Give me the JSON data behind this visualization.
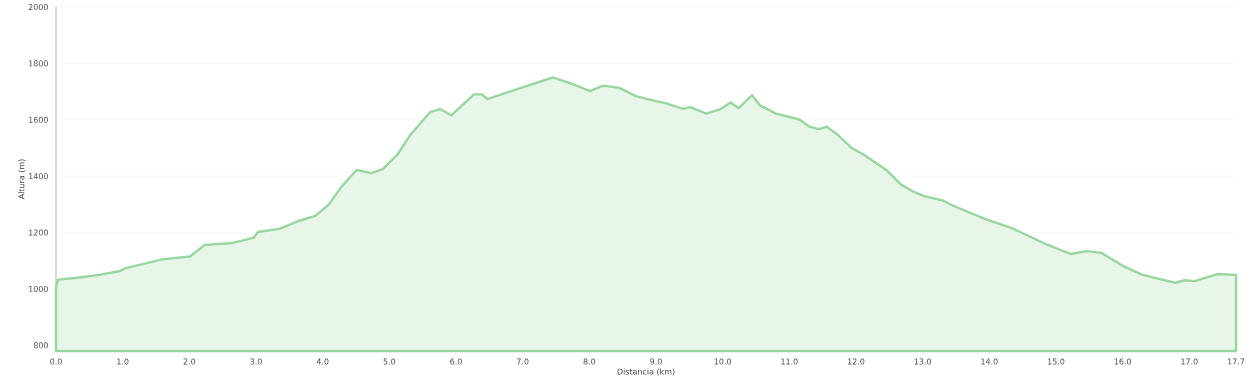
{
  "chart_data": {
    "type": "area",
    "xlabel": "Distancia   (km)",
    "ylabel": "Altura (m)",
    "x": [
      0,
      0.03,
      0.29,
      0.65,
      0.95,
      1.05,
      1.44,
      1.59,
      2.01,
      2.23,
      2.4,
      2.62,
      2.96,
      3.03,
      3.35,
      3.65,
      3.89,
      4.09,
      4.28,
      4.51,
      4.73,
      4.9,
      5.12,
      5.31,
      5.61,
      5.76,
      5.93,
      6.07,
      6.27,
      6.39,
      6.47,
      6.93,
      7.45,
      7.74,
      7.89,
      8.01,
      8.21,
      8.45,
      8.7,
      8.94,
      9.14,
      9.41,
      9.51,
      9.63,
      9.75,
      9.97,
      10.12,
      10.24,
      10.44,
      10.56,
      10.8,
      11.15,
      11.3,
      11.44,
      11.56,
      11.71,
      11.93,
      12.13,
      12.47,
      12.67,
      12.86,
      13.01,
      13.31,
      13.45,
      13.94,
      14.34,
      14.82,
      15.22,
      15.46,
      15.68,
      16.0,
      16.29,
      16.59,
      16.79,
      16.93,
      17.08,
      17.42,
      17.7
    ],
    "series": [
      {
        "color": "#98d69f",
        "values": [
          1005,
          1033,
          1039,
          1050,
          1063,
          1074,
          1096,
          1105,
          1115,
          1156,
          1159,
          1162,
          1181,
          1202,
          1213,
          1242,
          1259,
          1299,
          1362,
          1422,
          1411,
          1425,
          1476,
          1545,
          1627,
          1638,
          1616,
          1647,
          1690,
          1690,
          1673,
          1710,
          1750,
          1727,
          1713,
          1702,
          1721,
          1713,
          1684,
          1670,
          1659,
          1639,
          1645,
          1634,
          1622,
          1638,
          1661,
          1641,
          1687,
          1651,
          1622,
          1601,
          1576,
          1567,
          1575,
          1550,
          1501,
          1474,
          1419,
          1371,
          1345,
          1330,
          1313,
          1296,
          1248,
          1216,
          1162,
          1124,
          1134,
          1128,
          1082,
          1051,
          1033,
          1022,
          1031,
          1028,
          1053,
          1050
        ]
      }
    ],
    "xlim": [
      0,
      17.7
    ],
    "ylim": [
      780,
      2000
    ],
    "xticks": [
      {
        "value": 0,
        "label": "0.0"
      },
      {
        "value": 1,
        "label": "1.0"
      },
      {
        "value": 2,
        "label": "2.0"
      },
      {
        "value": 3,
        "label": "3.0"
      },
      {
        "value": 4,
        "label": "4.0"
      },
      {
        "value": 5,
        "label": "5.0"
      },
      {
        "value": 6,
        "label": "6.0"
      },
      {
        "value": 7,
        "label": "7.0"
      },
      {
        "value": 8,
        "label": "8.0"
      },
      {
        "value": 9,
        "label": "9.0"
      },
      {
        "value": 10,
        "label": "10.0"
      },
      {
        "value": 11,
        "label": "11.0"
      },
      {
        "value": 12,
        "label": "12.0"
      },
      {
        "value": 13,
        "label": "13.0"
      },
      {
        "value": 14,
        "label": "14.0"
      },
      {
        "value": 15,
        "label": "15.0"
      },
      {
        "value": 16,
        "label": "16.0"
      },
      {
        "value": 17,
        "label": "17.0"
      },
      {
        "value": 17.7,
        "label": "17.7"
      }
    ],
    "yticks": [
      800,
      1000,
      1200,
      1400,
      1600,
      1800,
      2000
    ],
    "grid": "y"
  }
}
